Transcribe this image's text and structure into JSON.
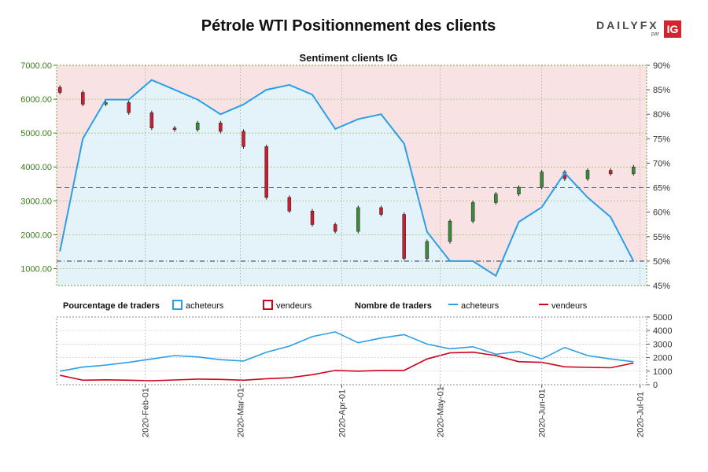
{
  "title": "Pétrole WTI Positionnement des clients",
  "logo": {
    "brand_left": "DAILY",
    "brand_right": "FX",
    "by": "par",
    "badge": "IG"
  },
  "colors": {
    "buyers": "#2b9fe6",
    "sellers": "#d0021b",
    "buyers_fill": "#e4f2fa",
    "sellers_fill": "#f9e2e4",
    "candle_up": "#3a8a3a",
    "candle_down": "#c81e2e",
    "left_axis": "#3a7d1a"
  },
  "chart_data": [
    {
      "type": "candlestick+line",
      "title": "Sentiment clients IG",
      "left_axis": {
        "ticks": [
          "1000.00",
          "2000.00",
          "3000.00",
          "4000.00",
          "5000.00",
          "6000.00",
          "7000.00"
        ],
        "range": [
          500,
          7000
        ]
      },
      "right_axis": {
        "ticks": [
          "45%",
          "50%",
          "55%",
          "60%",
          "65%",
          "70%",
          "75%",
          "80%",
          "85%",
          "90%"
        ],
        "range": [
          45,
          90
        ]
      },
      "reference_lines": [
        {
          "axis": "right",
          "value": 50,
          "style": "dash-dot"
        },
        {
          "axis": "right",
          "value": 65,
          "style": "dash"
        }
      ],
      "dates": [
        "2020-01-06",
        "2020-01-13",
        "2020-01-20",
        "2020-01-27",
        "2020-02-03",
        "2020-02-10",
        "2020-02-17",
        "2020-02-24",
        "2020-03-02",
        "2020-03-09",
        "2020-03-16",
        "2020-03-23",
        "2020-03-30",
        "2020-04-06",
        "2020-04-13",
        "2020-04-20",
        "2020-04-27",
        "2020-05-04",
        "2020-05-11",
        "2020-05-18",
        "2020-05-25",
        "2020-06-01",
        "2020-06-08",
        "2020-06-15",
        "2020-06-22",
        "2020-06-29"
      ],
      "price_close": [
        6200,
        5850,
        5900,
        5600,
        5150,
        5100,
        5300,
        5050,
        4600,
        3100,
        2700,
        2300,
        2100,
        2800,
        2600,
        1300,
        1800,
        2400,
        2950,
        3200,
        3400,
        3850,
        3650,
        3900,
        3800,
        4000
      ],
      "long_pct": [
        52,
        75,
        83,
        83,
        87,
        85,
        83,
        80,
        82,
        85,
        86,
        84,
        77,
        79,
        80,
        74,
        56,
        50,
        50,
        47,
        58,
        61,
        68,
        63,
        59,
        50
      ]
    },
    {
      "type": "line",
      "title": "Nombre de traders",
      "legend": {
        "pct_label": "Pourcentage de traders",
        "count_label": "Nombre de traders",
        "buyers": "acheteurs",
        "sellers": "vendeurs"
      },
      "y_ticks": [
        "0",
        "1000",
        "2000",
        "3000",
        "4000",
        "5000"
      ],
      "ylim": [
        0,
        5000
      ],
      "x_ticks": [
        "2020-Feb-01",
        "2020-Mar-01",
        "2020-Apr-01",
        "2020-May-01",
        "2020-Jun-01",
        "2020-Jul-01"
      ],
      "x_tick_dates": [
        "2020-02-01",
        "2020-03-01",
        "2020-04-01",
        "2020-05-01",
        "2020-06-01",
        "2020-07-01"
      ],
      "series": [
        {
          "name": "acheteurs",
          "values": [
            1000,
            1300,
            1450,
            1650,
            1900,
            2150,
            2050,
            1850,
            1750,
            2400,
            2850,
            3550,
            3900,
            3100,
            3450,
            3700,
            3000,
            2650,
            2800,
            2250,
            2450,
            1900,
            2750,
            2150,
            1900,
            1700
          ]
        },
        {
          "name": "vendeurs",
          "values": [
            700,
            330,
            360,
            330,
            290,
            350,
            410,
            390,
            330,
            440,
            510,
            740,
            1050,
            1000,
            1050,
            1050,
            1900,
            2350,
            2400,
            2150,
            1700,
            1650,
            1320,
            1280,
            1250,
            1600
          ]
        }
      ]
    }
  ]
}
